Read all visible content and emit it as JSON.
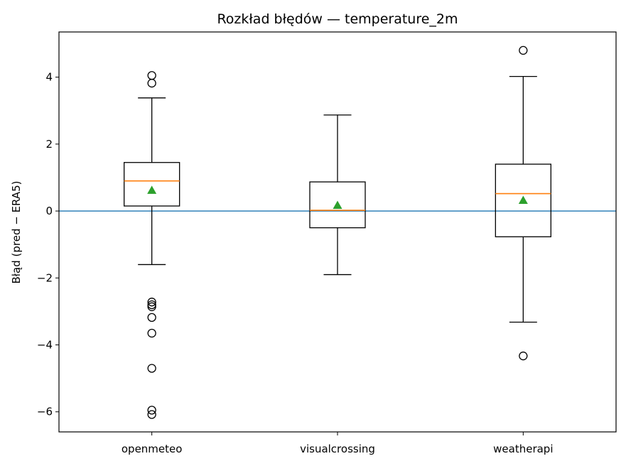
{
  "chart_data": {
    "type": "boxplot",
    "title": "Rozkład błędów — temperature_2m",
    "xlabel": "",
    "ylabel": "Błąd (pred − ERA5)",
    "ylim": [
      -6.6,
      5.35
    ],
    "yticks": [
      -6,
      -4,
      -2,
      0,
      2,
      4
    ],
    "ytick_labels": [
      "−6",
      "−4",
      "−2",
      "0",
      "2",
      "4"
    ],
    "reference_line": {
      "y": 0,
      "color": "#1f77b4"
    },
    "colors": {
      "median": "#ff7f0e",
      "mean": "#2ca02c",
      "box": "#000000"
    },
    "categories": [
      "openmeteo",
      "visualcrossing",
      "weatherapi"
    ],
    "boxes": [
      {
        "name": "openmeteo",
        "whisker_low": -1.6,
        "q1": 0.15,
        "median": 0.9,
        "q3": 1.45,
        "whisker_high": 3.38,
        "mean": 0.62,
        "outliers": [
          4.05,
          3.82,
          -2.72,
          -2.8,
          -2.86,
          -3.18,
          -3.65,
          -4.7,
          -5.95,
          -6.08
        ]
      },
      {
        "name": "visualcrossing",
        "whisker_low": -1.9,
        "q1": -0.5,
        "median": 0.02,
        "q3": 0.87,
        "whisker_high": 2.87,
        "mean": 0.17,
        "outliers": []
      },
      {
        "name": "weatherapi",
        "whisker_low": -3.32,
        "q1": -0.77,
        "median": 0.52,
        "q3": 1.4,
        "whisker_high": 4.02,
        "mean": 0.32,
        "outliers": [
          4.8,
          -4.33
        ]
      }
    ]
  }
}
